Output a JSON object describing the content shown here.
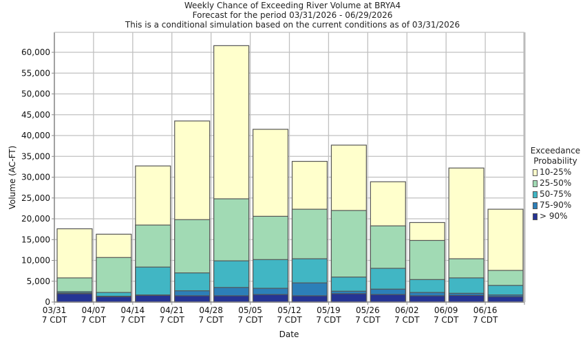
{
  "chart_data": {
    "type": "bar",
    "stacked": true,
    "title": "Weekly Chance of Exceeding River Volume at BRYA4",
    "subtitle_lines": [
      "Forecast for the period 03/31/2026 - 06/29/2026",
      "This is a conditional simulation based on the current conditions as of 03/31/2026"
    ],
    "xlabel": "Date",
    "ylabel": "Volume (AC-FT)",
    "ylim": [
      0,
      64800
    ],
    "yticks": [
      0,
      5000,
      10000,
      15000,
      20000,
      25000,
      30000,
      35000,
      40000,
      45000,
      50000,
      55000,
      60000
    ],
    "ytick_labels": [
      "0",
      "5,000",
      "10,000",
      "15,000",
      "20,000",
      "25,000",
      "30,000",
      "35,000",
      "40,000",
      "45,000",
      "50,000",
      "55,000",
      "60,000"
    ],
    "grid": true,
    "categories": [
      "03/31",
      "04/07",
      "04/14",
      "04/21",
      "04/28",
      "05/05",
      "05/12",
      "05/19",
      "05/26",
      "06/02",
      "06/09",
      "06/16"
    ],
    "category_sublabel": "7 CDT",
    "legend_title": [
      "Exceedance",
      "Probability"
    ],
    "legend_position": "right",
    "series_cumulative_note": "values are cumulative top of each band (volume exceeded at that probability)",
    "series": [
      {
        "name": "> 90%",
        "color": "#253494",
        "values": [
          2000,
          1300,
          1600,
          1500,
          1500,
          1800,
          1500,
          2000,
          1800,
          1500,
          1600,
          1300
        ]
      },
      {
        "name": "75-90%",
        "color": "#2c7fb8",
        "values": [
          2200,
          1400,
          1700,
          2700,
          3500,
          3300,
          4600,
          2600,
          3100,
          2300,
          2100,
          1700
        ]
      },
      {
        "name": "50-75%",
        "color": "#41b6c4",
        "values": [
          2500,
          2300,
          8400,
          7000,
          9900,
          10200,
          10400,
          6000,
          8100,
          5400,
          5800,
          4000
        ]
      },
      {
        "name": "25-50%",
        "color": "#a1dab4",
        "values": [
          5800,
          10700,
          18500,
          19800,
          24800,
          20600,
          22300,
          22000,
          18300,
          14800,
          10400,
          7600
        ]
      },
      {
        "name": "10-25%",
        "color": "#ffffcc",
        "values": [
          17600,
          16300,
          32700,
          43500,
          61600,
          41500,
          33800,
          37700,
          28900,
          19100,
          32200,
          22300
        ]
      }
    ]
  }
}
